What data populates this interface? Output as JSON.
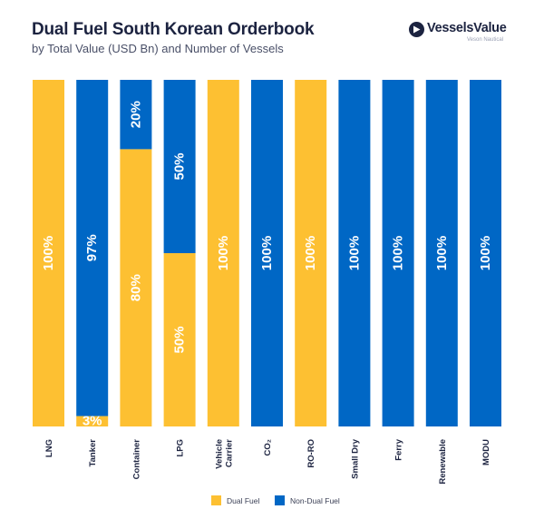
{
  "header": {
    "title": "Dual Fuel South Korean Orderbook",
    "subtitle": "by Total Value (USD Bn) and Number of Vessels"
  },
  "logo": {
    "name": "VesselsValue",
    "tagline": "Veson Nautical",
    "icon": "triangle-circle-logo-icon"
  },
  "colors": {
    "dual_fuel": "#FDC032",
    "non_dual_fuel": "#0067C5",
    "title": "#1C2340"
  },
  "legend": {
    "dual_fuel_label": "Dual Fuel",
    "non_dual_fuel_label": "Non-Dual Fuel"
  },
  "chart_data": {
    "type": "bar",
    "stacked": true,
    "orientation": "vertical-percent",
    "categories": [
      "LNG",
      "Tanker",
      "Container",
      "LPG",
      "Vehicle Carrier",
      "CO₂",
      "RO-RO",
      "Small Dry",
      "Ferry",
      "Renewable",
      "MODU"
    ],
    "series": [
      {
        "name": "Dual Fuel",
        "values": [
          100,
          3,
          80,
          50,
          100,
          0,
          100,
          0,
          0,
          0,
          0
        ]
      },
      {
        "name": "Non-Dual Fuel",
        "values": [
          0,
          97,
          20,
          50,
          0,
          100,
          0,
          100,
          100,
          100,
          100
        ]
      }
    ],
    "data_labels": [
      [
        "100%",
        "3%",
        "80%",
        "50%",
        "100%",
        "",
        "100%",
        "",
        "",
        "",
        ""
      ],
      [
        "",
        "97%",
        "20%",
        "50%",
        "",
        "100%",
        "",
        "100%",
        "100%",
        "100%",
        "100%"
      ]
    ],
    "ylim": [
      0,
      100
    ],
    "grid": false,
    "legend_position": "bottom"
  }
}
